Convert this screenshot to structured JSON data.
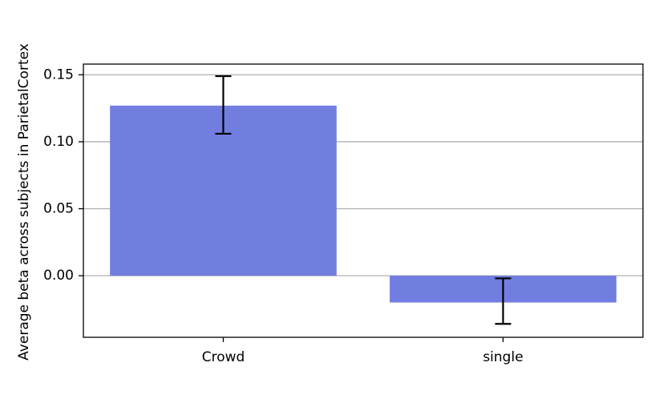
{
  "chart_data": {
    "type": "bar",
    "title": "",
    "xlabel": "",
    "ylabel": "Average beta across subjects in ParietalCortex",
    "categories": [
      "Crowd",
      "single"
    ],
    "values": [
      0.127,
      -0.02
    ],
    "errors": [
      {
        "low": 0.106,
        "high": 0.149
      },
      {
        "low": -0.036,
        "high": -0.002
      }
    ],
    "ylim": [
      -0.046,
      0.158
    ],
    "yticks": [
      0.0,
      0.05,
      0.1,
      0.15
    ],
    "ytick_labels": [
      "0.00",
      "0.05",
      "0.10",
      "0.15"
    ],
    "grid": "y",
    "bar_color": "#717ee0",
    "grid_color": "#b0b0b0"
  }
}
